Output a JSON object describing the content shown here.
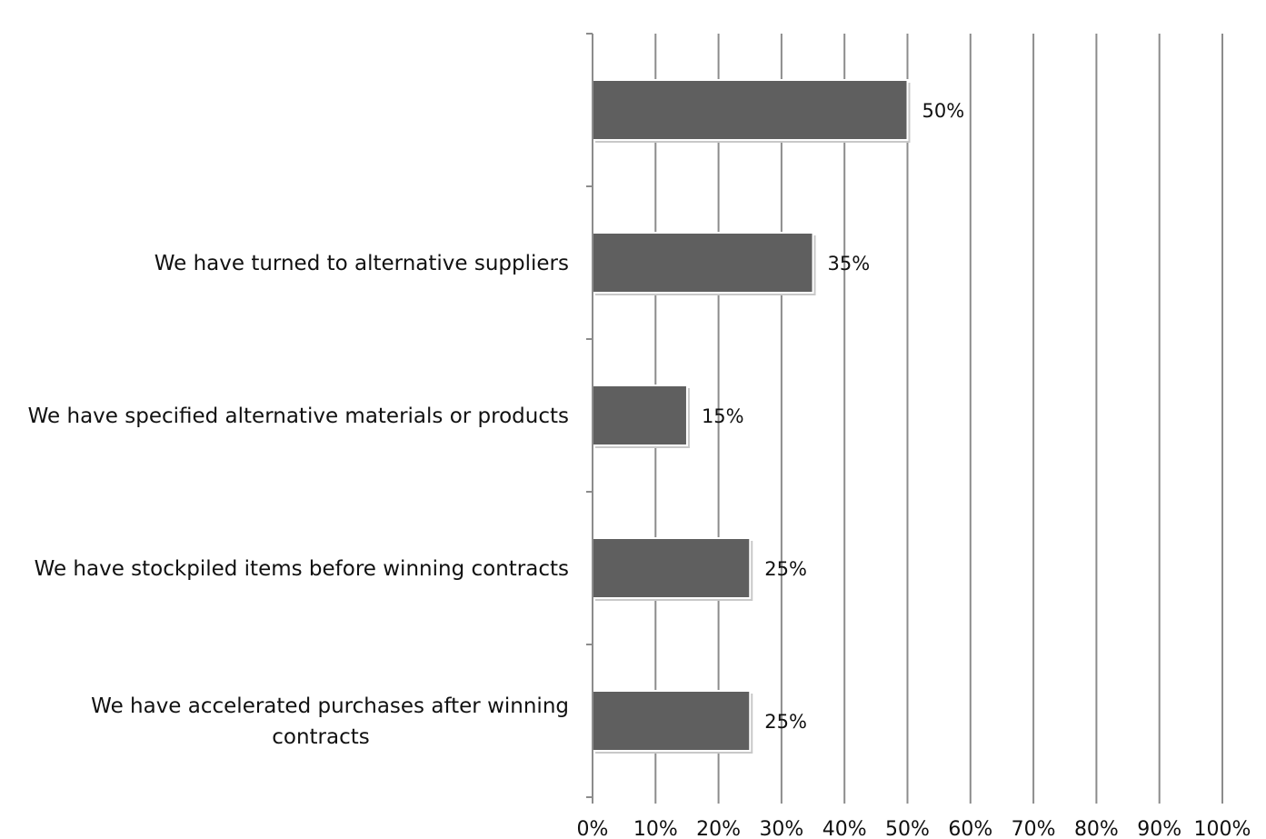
{
  "chart_data": {
    "type": "bar",
    "orientation": "horizontal",
    "categories": [
      "",
      "We have turned to alternative suppliers",
      "We have specified alternative materials or products",
      "We have stockpiled items before winning contracts",
      "We have accelerated purchases after winning contracts"
    ],
    "category_lines": [
      [],
      [
        "We have turned to alternative suppliers"
      ],
      [
        "We have specified alternative materials or products"
      ],
      [
        "We have stockpiled items before winning contracts"
      ],
      [
        "We have accelerated purchases after winning",
        "contracts"
      ]
    ],
    "values": [
      50,
      35,
      15,
      25,
      25
    ],
    "data_labels": [
      "50%",
      "35%",
      "15%",
      "25%",
      "25%"
    ],
    "xlim": [
      0,
      100
    ],
    "xticks": [
      0,
      10,
      20,
      30,
      40,
      50,
      60,
      70,
      80,
      90,
      100
    ],
    "xtick_labels": [
      "0%",
      "10%",
      "20%",
      "30%",
      "40%",
      "50%",
      "60%",
      "70%",
      "80%",
      "90%",
      "100%"
    ],
    "grid": "vertical",
    "legend": "none",
    "title": "",
    "xlabel": "",
    "ylabel": "",
    "bar_color": "#5f5f5f",
    "grid_color": "#8c8c8c"
  }
}
